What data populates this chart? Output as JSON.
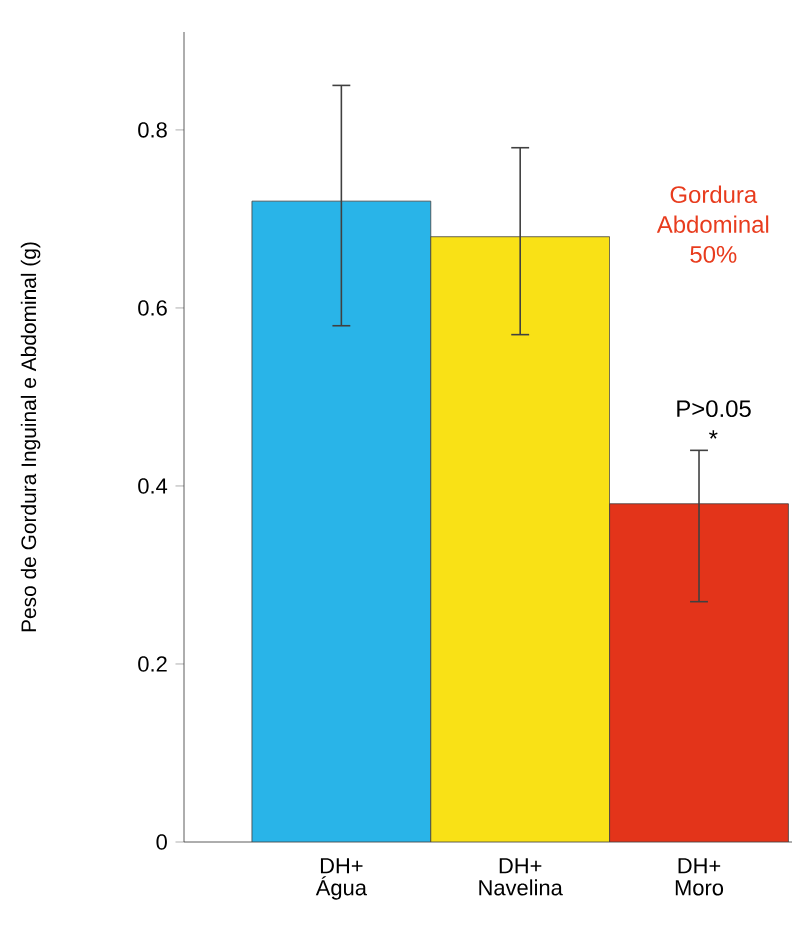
{
  "chart_data": {
    "type": "bar",
    "ylabel": "Peso de Gordura Inguinal e Abdominal (g)",
    "categories": [
      "DH+ Água",
      "DH+ Navelina",
      "DH+ Moro"
    ],
    "values": [
      0.72,
      0.68,
      0.38
    ],
    "colors": [
      "#29b4e8",
      "#f9e116",
      "#e3341a"
    ],
    "errors": [
      [
        0.58,
        0.85
      ],
      [
        0.57,
        0.78
      ],
      [
        0.27,
        0.44
      ]
    ],
    "ylim": [
      0,
      0.91
    ],
    "yticks": [
      {
        "value": 0,
        "label": "0"
      },
      0.2,
      0.4,
      0.6,
      0.8
    ],
    "annotations": [
      "Gordura Abdominal 50%",
      "P>0.05 *"
    ]
  }
}
